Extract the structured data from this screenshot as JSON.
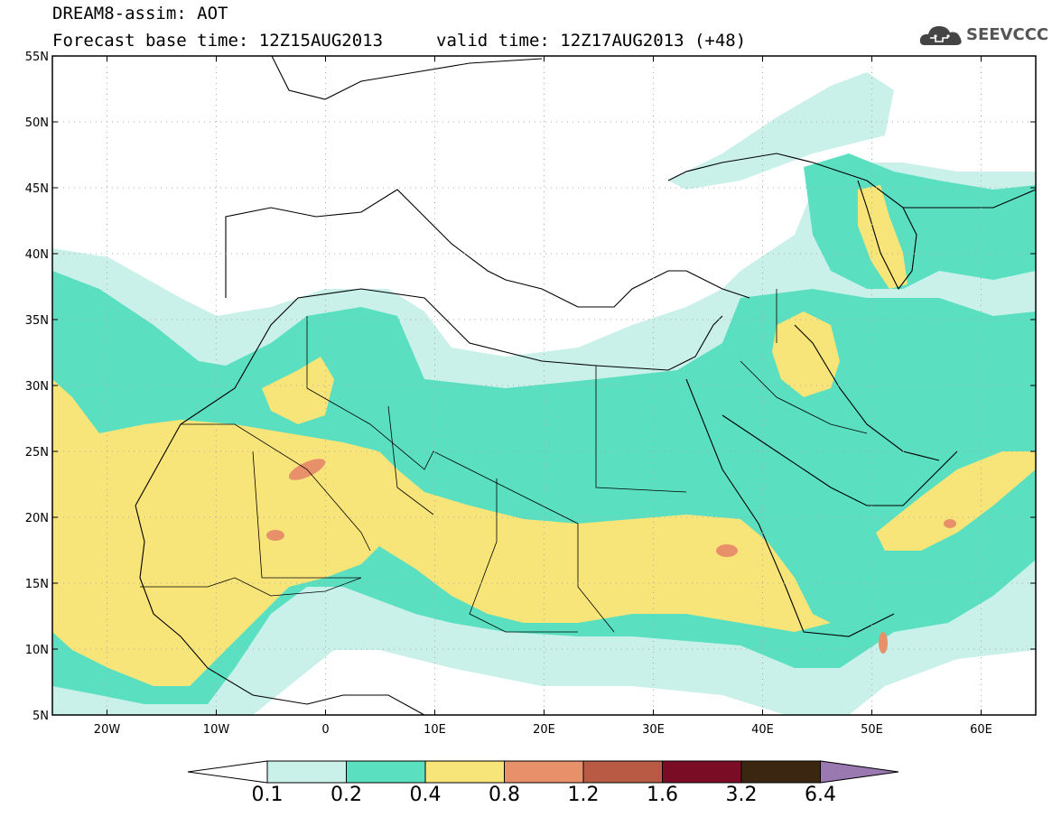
{
  "header": {
    "title_line1": "DREAM8-assim: AOT",
    "base_time": "Forecast base time: 12Z15AUG2013",
    "valid_time": "valid time: 12Z17AUG2013 (+48)",
    "logo_text": "SEEVCCC"
  },
  "map": {
    "lon_range": [
      -25,
      65
    ],
    "lat_range": [
      5,
      55
    ],
    "lat_ticks": [
      "55N",
      "50N",
      "45N",
      "40N",
      "35N",
      "30N",
      "25N",
      "20N",
      "15N",
      "10N",
      "5N"
    ],
    "lon_ticks": [
      "20W",
      "10W",
      "0",
      "10E",
      "20E",
      "30E",
      "40E",
      "50E",
      "60E"
    ],
    "grid": true
  },
  "legend": {
    "levels": [
      "0.1",
      "0.2",
      "0.4",
      "0.8",
      "1.2",
      "1.6",
      "3.2",
      "6.4"
    ],
    "colors": [
      "#ffffff",
      "#c9f1ea",
      "#5adfc0",
      "#f8e57a",
      "#e8906a",
      "#b85a44",
      "#7a0c26",
      "#3b2612",
      "#9a78b0"
    ]
  }
}
